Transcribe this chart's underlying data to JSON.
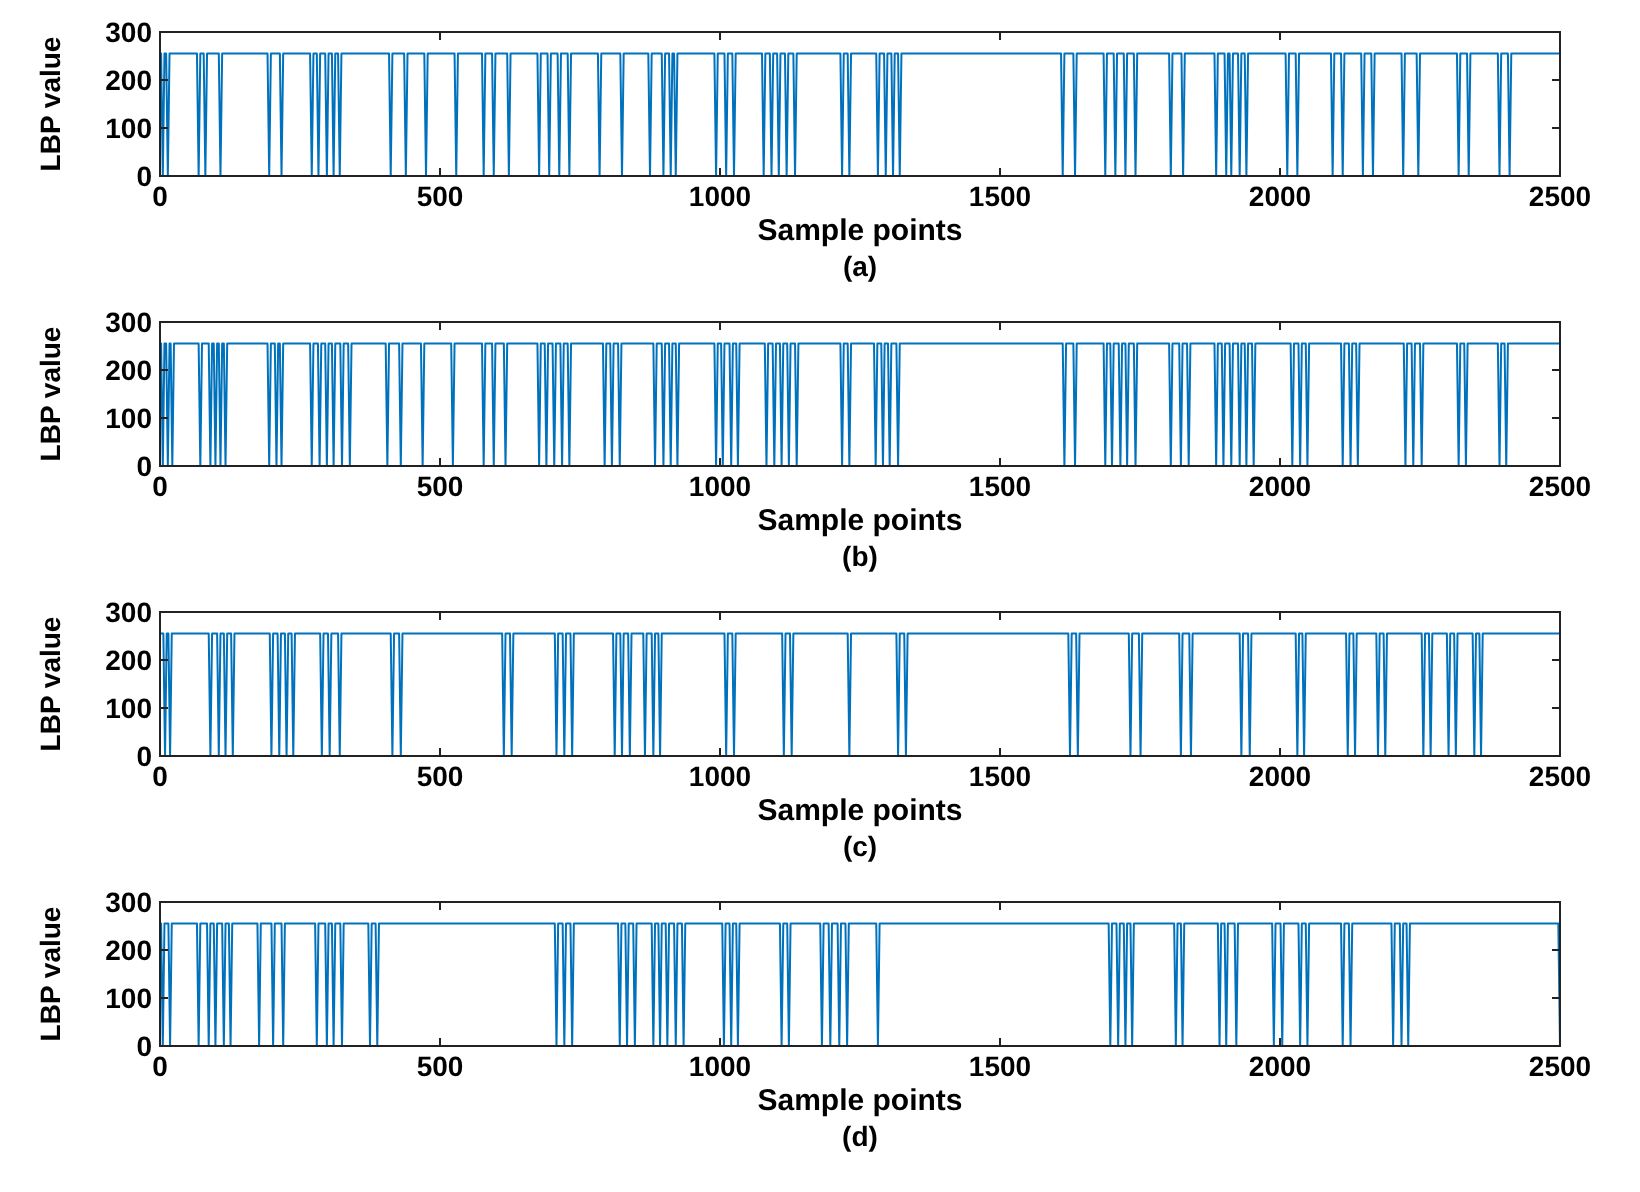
{
  "chart_data": [
    {
      "type": "line",
      "xlabel": "Sample points",
      "ylabel": "LBP value",
      "annotations": [
        "(a)"
      ],
      "xlim": [
        0,
        2500
      ],
      "ylim": [
        0,
        300
      ],
      "xticks": [
        0,
        500,
        1000,
        1500,
        2000,
        2500
      ],
      "yticks": [
        0,
        100,
        200,
        300
      ],
      "series": [
        {
          "color": "#0072bd",
          "x": [
            0,
            2,
            5,
            8,
            11,
            14,
            17,
            66,
            69,
            72,
            78,
            81,
            84,
            105,
            108,
            111,
            192,
            195,
            198,
            214,
            217,
            220,
            268,
            271,
            274,
            280,
            283,
            286,
            295,
            298,
            301,
            307,
            310,
            313,
            318,
            321,
            324,
            409,
            412,
            415,
            436,
            439,
            442,
            472,
            475,
            478,
            526,
            529,
            532,
            575,
            578,
            581,
            593,
            596,
            599,
            620,
            623,
            626,
            674,
            677,
            680,
            692,
            695,
            698,
            710,
            713,
            716,
            728,
            731,
            734,
            782,
            785,
            788,
            822,
            825,
            828,
            872,
            875,
            878,
            896,
            899,
            902,
            909,
            912,
            915,
            918,
            921,
            924,
            990,
            993,
            996,
            1008,
            1011,
            1014,
            1022,
            1025,
            1028,
            1075,
            1078,
            1081,
            1089,
            1092,
            1095,
            1102,
            1105,
            1108,
            1116,
            1119,
            1122,
            1131,
            1134,
            1137,
            1215,
            1218,
            1221,
            1228,
            1231,
            1234,
            1279,
            1282,
            1285,
            1293,
            1296,
            1299,
            1306,
            1309,
            1312,
            1318,
            1321,
            1324,
            1609,
            1612,
            1615,
            1631,
            1634,
            1637,
            1685,
            1688,
            1691,
            1703,
            1706,
            1709,
            1721,
            1724,
            1727,
            1739,
            1742,
            1745,
            1802,
            1805,
            1808,
            1824,
            1827,
            1830,
            1883,
            1886,
            1889,
            1901,
            1904,
            1907,
            1910,
            1913,
            1916,
            1925,
            1928,
            1931,
            1937,
            1940,
            1943,
            2010,
            2013,
            2016,
            2028,
            2031,
            2034,
            2091,
            2094,
            2097,
            2109,
            2112,
            2115,
            2145,
            2148,
            2151,
            2163,
            2166,
            2169,
            2217,
            2220,
            2223,
            2244,
            2247,
            2250,
            2316,
            2319,
            2322,
            2334,
            2337,
            2340,
            2389,
            2392,
            2395,
            2407,
            2410,
            2413,
            2500
          ],
          "values": [
            255,
            255,
            0,
            255,
            255,
            0,
            255,
            255,
            0,
            255,
            255,
            0,
            255,
            255,
            0,
            255,
            255,
            0,
            255,
            255,
            0,
            255,
            255,
            0,
            255,
            255,
            0,
            255,
            255,
            0,
            255,
            255,
            0,
            255,
            255,
            0,
            255,
            255,
            0,
            255,
            255,
            0,
            255,
            255,
            0,
            255,
            255,
            0,
            255,
            255,
            0,
            255,
            255,
            0,
            255,
            255,
            0,
            255,
            255,
            0,
            255,
            255,
            0,
            255,
            255,
            0,
            255,
            255,
            0,
            255,
            255,
            0,
            255,
            255,
            0,
            255,
            255,
            0,
            255,
            255,
            0,
            255,
            255,
            0,
            255,
            255,
            0,
            255,
            255,
            0,
            255,
            255,
            0,
            255,
            255,
            0,
            255,
            255,
            0,
            255,
            255,
            0,
            255,
            255,
            0,
            255,
            255,
            0,
            255,
            255,
            0,
            255,
            255,
            0,
            255,
            255,
            0,
            255,
            255,
            0,
            255,
            255,
            0,
            255,
            255,
            0,
            255,
            255,
            0,
            255,
            255,
            0,
            255,
            255,
            0,
            255,
            255,
            0,
            255,
            255,
            0,
            255,
            255,
            0,
            255,
            255,
            0,
            255,
            255,
            0,
            255,
            255,
            0,
            255,
            255,
            0,
            255,
            255,
            0,
            255,
            255,
            0,
            255,
            255,
            0,
            255,
            255,
            0,
            255,
            255,
            0,
            255,
            255,
            0,
            255,
            255,
            0,
            255,
            255,
            0,
            255,
            255,
            0,
            255,
            255,
            0,
            255,
            255,
            0,
            255,
            255,
            0,
            255,
            255,
            0,
            255,
            255,
            0,
            255,
            255,
            0,
            255,
            255,
            0,
            255,
            255
          ]
        }
      ]
    },
    {
      "type": "line",
      "xlabel": "Sample points",
      "ylabel": "LBP value",
      "annotations": [
        "(b)"
      ],
      "xlim": [
        0,
        2500
      ],
      "ylim": [
        0,
        300
      ],
      "xticks": [
        0,
        500,
        1000,
        1500,
        2000,
        2500
      ],
      "yticks": [
        0,
        100,
        200,
        300
      ],
      "series": [
        {
          "color": "#0072bd",
          "x": [
            0,
            2,
            5,
            8,
            11,
            14,
            17,
            19,
            22,
            25,
            69,
            72,
            75,
            87,
            90,
            93,
            96,
            99,
            102,
            105,
            108,
            111,
            114,
            117,
            120,
            192,
            195,
            198,
            205,
            208,
            211,
            214,
            217,
            220,
            268,
            271,
            274,
            282,
            285,
            288,
            295,
            298,
            301,
            307,
            310,
            313,
            322,
            325,
            328,
            336,
            339,
            342,
            403,
            406,
            409,
            427,
            430,
            433,
            466,
            469,
            472,
            520,
            523,
            526,
            575,
            578,
            581,
            593,
            596,
            599,
            614,
            617,
            620,
            674,
            677,
            680,
            687,
            690,
            693,
            701,
            704,
            707,
            715,
            718,
            721,
            728,
            731,
            734,
            791,
            794,
            797,
            804,
            807,
            810,
            818,
            821,
            824,
            881,
            884,
            887,
            896,
            899,
            902,
            909,
            912,
            915,
            921,
            924,
            927,
            990,
            993,
            996,
            1002,
            1005,
            1008,
            1017,
            1020,
            1023,
            1029,
            1032,
            1035,
            1080,
            1083,
            1086,
            1094,
            1097,
            1100,
            1107,
            1110,
            1113,
            1120,
            1123,
            1126,
            1134,
            1137,
            1140,
            1215,
            1218,
            1221,
            1228,
            1231,
            1234,
            1275,
            1278,
            1281,
            1288,
            1291,
            1294,
            1300,
            1303,
            1306,
            1315,
            1318,
            1321,
            1612,
            1615,
            1618,
            1631,
            1634,
            1637,
            1685,
            1688,
            1691,
            1697,
            1700,
            1703,
            1712,
            1715,
            1718,
            1724,
            1727,
            1730,
            1739,
            1742,
            1745,
            1802,
            1805,
            1808,
            1820,
            1823,
            1826,
            1834,
            1837,
            1840,
            1883,
            1886,
            1889,
            1896,
            1899,
            1902,
            1910,
            1913,
            1916,
            1925,
            1928,
            1931,
            1937,
            1940,
            1943,
            1950,
            1953,
            1956,
            2019,
            2022,
            2025,
            2033,
            2036,
            2039,
            2046,
            2049,
            2052,
            2109,
            2112,
            2115,
            2123,
            2126,
            2129,
            2136,
            2139,
            2142,
            2221,
            2224,
            2227,
            2235,
            2238,
            2241,
            2250,
            2253,
            2256,
            2316,
            2319,
            2322,
            2329,
            2332,
            2335,
            2389,
            2392,
            2395,
            2401,
            2404,
            2407,
            2500
          ],
          "values": [
            255,
            255,
            0,
            255,
            255,
            0,
            255,
            255,
            0,
            255,
            255,
            0,
            255,
            255,
            0,
            255,
            255,
            0,
            255,
            255,
            0,
            255,
            255,
            0,
            255,
            255,
            0,
            255,
            255,
            0,
            255,
            255,
            0,
            255,
            255,
            0,
            255,
            255,
            0,
            255,
            255,
            0,
            255,
            255,
            0,
            255,
            255,
            0,
            255,
            255,
            0,
            255,
            255,
            0,
            255,
            255,
            0,
            255,
            255,
            0,
            255,
            255,
            0,
            255,
            255,
            0,
            255,
            255,
            0,
            255,
            255,
            0,
            255,
            255,
            0,
            255,
            255,
            0,
            255,
            255,
            0,
            255,
            255,
            0,
            255,
            255,
            0,
            255,
            255,
            0,
            255,
            255,
            0,
            255,
            255,
            0,
            255,
            255,
            0,
            255,
            255,
            0,
            255,
            255,
            0,
            255,
            255,
            0,
            255,
            255,
            0,
            255,
            255,
            0,
            255,
            255,
            0,
            255,
            255,
            0,
            255,
            255,
            0,
            255,
            255,
            0,
            255,
            255,
            0,
            255,
            255,
            0,
            255,
            255,
            0,
            255,
            255,
            0,
            255,
            255,
            0,
            255,
            255,
            0,
            255,
            255,
            0,
            255,
            255,
            0,
            255,
            255,
            0,
            255,
            255,
            0,
            255,
            255,
            0,
            255,
            255,
            0,
            255,
            255,
            0,
            255,
            255,
            0,
            255,
            255,
            0,
            255,
            255,
            0,
            255,
            255,
            0,
            255,
            255,
            0,
            255,
            255,
            0,
            255,
            255,
            0,
            255,
            255,
            0,
            255,
            255,
            0,
            255,
            255,
            0,
            255,
            255,
            0,
            255,
            255,
            0,
            255,
            255,
            0,
            255,
            255,
            0,
            255,
            255,
            0,
            255,
            255,
            0,
            255,
            255,
            0,
            255,
            255,
            0,
            255,
            255,
            0,
            255,
            255,
            0,
            255,
            255,
            0,
            255,
            255,
            0,
            255,
            255,
            0,
            255,
            255,
            0,
            255,
            255,
            0,
            255,
            255
          ]
        }
      ]
    },
    {
      "type": "line",
      "xlabel": "Sample points",
      "ylabel": "LBP value",
      "annotations": [
        "(c)"
      ],
      "xlim": [
        0,
        2500
      ],
      "ylim": [
        0,
        300
      ],
      "xticks": [
        0,
        500,
        1000,
        1500,
        2000,
        2500
      ],
      "yticks": [
        0,
        100,
        200,
        300
      ],
      "series": [
        {
          "color": "#0072bd",
          "x": [
            0,
            6,
            9,
            12,
            15,
            18,
            21,
            87,
            90,
            93,
            102,
            105,
            108,
            114,
            117,
            120,
            127,
            130,
            133,
            196,
            199,
            202,
            210,
            213,
            216,
            223,
            226,
            229,
            235,
            238,
            241,
            286,
            289,
            292,
            300,
            303,
            306,
            318,
            321,
            324,
            412,
            415,
            418,
            427,
            430,
            433,
            611,
            614,
            617,
            625,
            628,
            631,
            705,
            708,
            711,
            719,
            722,
            725,
            733,
            736,
            739,
            809,
            812,
            815,
            822,
            825,
            828,
            836,
            839,
            842,
            863,
            866,
            869,
            878,
            881,
            884,
            890,
            893,
            896,
            1008,
            1011,
            1014,
            1022,
            1025,
            1028,
            1111,
            1114,
            1117,
            1125,
            1128,
            1131,
            1228,
            1231,
            1234,
            1315,
            1318,
            1321,
            1329,
            1332,
            1335,
            1622,
            1625,
            1628,
            1636,
            1639,
            1642,
            1730,
            1733,
            1736,
            1748,
            1751,
            1754,
            1820,
            1823,
            1826,
            1838,
            1841,
            1844,
            1928,
            1931,
            1934,
            1943,
            1946,
            1949,
            2028,
            2031,
            2034,
            2040,
            2043,
            2046,
            2118,
            2121,
            2124,
            2131,
            2134,
            2137,
            2172,
            2175,
            2178,
            2185,
            2188,
            2191,
            2253,
            2256,
            2259,
            2266,
            2269,
            2272,
            2298,
            2301,
            2304,
            2311,
            2314,
            2317,
            2344,
            2347,
            2350,
            2356,
            2359,
            2362,
            2500
          ],
          "values": [
            255,
            255,
            0,
            255,
            255,
            0,
            255,
            255,
            0,
            255,
            255,
            0,
            255,
            255,
            0,
            255,
            255,
            0,
            255,
            255,
            0,
            255,
            255,
            0,
            255,
            255,
            0,
            255,
            255,
            0,
            255,
            255,
            0,
            255,
            255,
            0,
            255,
            255,
            0,
            255,
            255,
            0,
            255,
            255,
            0,
            255,
            255,
            0,
            255,
            255,
            0,
            255,
            255,
            0,
            255,
            255,
            0,
            255,
            255,
            0,
            255,
            255,
            0,
            255,
            255,
            0,
            255,
            255,
            0,
            255,
            255,
            0,
            255,
            255,
            0,
            255,
            255,
            0,
            255,
            255,
            0,
            255,
            255,
            0,
            255,
            255,
            0,
            255,
            255,
            0,
            255,
            255,
            0,
            255,
            255,
            0,
            255,
            255,
            0,
            255,
            255,
            0,
            255,
            255,
            0,
            255,
            255,
            0,
            255,
            255,
            0,
            255,
            255,
            0,
            255,
            255,
            0,
            255,
            255,
            0,
            255,
            255,
            0,
            255,
            255,
            0,
            255,
            255,
            0,
            255,
            255,
            0,
            255,
            255,
            0,
            255,
            255,
            0,
            255,
            255,
            0,
            255,
            255,
            0,
            255,
            255,
            0,
            255,
            255,
            0,
            255,
            255,
            0,
            255,
            255,
            0,
            255,
            255,
            0,
            255,
            255
          ]
        }
      ]
    },
    {
      "type": "line",
      "xlabel": "Sample points",
      "ylabel": "LBP value",
      "annotations": [
        "(d)"
      ],
      "xlim": [
        0,
        2500
      ],
      "ylim": [
        0,
        300
      ],
      "xticks": [
        0,
        500,
        1000,
        1500,
        2000,
        2500
      ],
      "yticks": [
        0,
        100,
        200,
        300
      ],
      "series": [
        {
          "color": "#0072bd",
          "x": [
            0,
            2,
            5,
            8,
            15,
            18,
            21,
            66,
            69,
            72,
            84,
            87,
            90,
            96,
            99,
            102,
            111,
            114,
            117,
            123,
            126,
            129,
            174,
            177,
            180,
            199,
            202,
            205,
            217,
            220,
            223,
            277,
            280,
            283,
            295,
            298,
            301,
            307,
            310,
            313,
            322,
            325,
            328,
            372,
            375,
            378,
            385,
            388,
            391,
            705,
            708,
            711,
            719,
            722,
            725,
            733,
            736,
            739,
            818,
            821,
            824,
            831,
            834,
            837,
            845,
            848,
            851,
            878,
            881,
            884,
            890,
            893,
            896,
            903,
            906,
            909,
            918,
            921,
            924,
            932,
            935,
            938,
            1004,
            1007,
            1010,
            1017,
            1020,
            1023,
            1029,
            1032,
            1035,
            1107,
            1110,
            1113,
            1120,
            1123,
            1126,
            1179,
            1182,
            1185,
            1194,
            1197,
            1200,
            1210,
            1213,
            1216,
            1224,
            1227,
            1230,
            1279,
            1282,
            1285,
            1694,
            1697,
            1700,
            1708,
            1711,
            1714,
            1721,
            1724,
            1727,
            1733,
            1736,
            1739,
            1811,
            1814,
            1817,
            1823,
            1826,
            1829,
            1889,
            1892,
            1895,
            1901,
            1904,
            1907,
            1919,
            1922,
            1925,
            1986,
            1989,
            1992,
            2001,
            2004,
            2007,
            2033,
            2036,
            2039,
            2046,
            2049,
            2052,
            2109,
            2112,
            2115,
            2123,
            2126,
            2129,
            2199,
            2202,
            2205,
            2214,
            2217,
            2220,
            2226,
            2229,
            2232,
            2497,
            2500
          ],
          "values": [
            255,
            255,
            0,
            255,
            255,
            0,
            255,
            255,
            0,
            255,
            255,
            0,
            255,
            255,
            0,
            255,
            255,
            0,
            255,
            255,
            0,
            255,
            255,
            0,
            255,
            255,
            0,
            255,
            255,
            0,
            255,
            255,
            0,
            255,
            255,
            0,
            255,
            255,
            0,
            255,
            255,
            0,
            255,
            255,
            0,
            255,
            255,
            0,
            255,
            255,
            0,
            255,
            255,
            0,
            255,
            255,
            0,
            255,
            255,
            0,
            255,
            255,
            0,
            255,
            255,
            0,
            255,
            255,
            0,
            255,
            255,
            0,
            255,
            255,
            0,
            255,
            255,
            0,
            255,
            255,
            0,
            255,
            255,
            0,
            255,
            255,
            0,
            255,
            255,
            0,
            255,
            255,
            0,
            255,
            255,
            0,
            255,
            255,
            0,
            255,
            255,
            0,
            255,
            255,
            0,
            255,
            255,
            0,
            255,
            255,
            0,
            255,
            255,
            0,
            255,
            255,
            0,
            255,
            255,
            0,
            255,
            255,
            0,
            255,
            255,
            0,
            255,
            255,
            0,
            255,
            255,
            0,
            255,
            255,
            0,
            255,
            255,
            0,
            255,
            255,
            0,
            255,
            255,
            0,
            255,
            255,
            0,
            255,
            255,
            0,
            255,
            255,
            0,
            255,
            255,
            0,
            255,
            255,
            0,
            255,
            255,
            0,
            255,
            255,
            0,
            255,
            255,
            0
          ]
        }
      ]
    }
  ]
}
